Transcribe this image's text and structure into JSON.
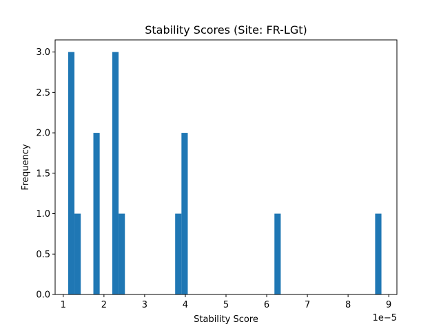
{
  "chart_data": {
    "type": "bar",
    "title": "Stability Scores (Site: FR-LGt)",
    "xlabel": "Stability Score",
    "ylabel": "Frequency",
    "x_offset_label": "1e−5",
    "x_scale_exponent": -5,
    "xlim": [
      0.8,
      9.2
    ],
    "ylim": [
      0,
      3.15
    ],
    "bin_width": 0.155,
    "x_ticks": [
      1,
      2,
      3,
      4,
      5,
      6,
      7,
      8,
      9
    ],
    "y_ticks": [
      0.0,
      0.5,
      1.0,
      1.5,
      2.0,
      2.5,
      3.0
    ],
    "y_tick_labels": [
      "0.0",
      "0.5",
      "1.0",
      "1.5",
      "2.0",
      "2.5",
      "3.0"
    ],
    "bars": [
      {
        "x_start": 1.12,
        "count": 3
      },
      {
        "x_start": 1.275,
        "count": 1
      },
      {
        "x_start": 1.74,
        "count": 2
      },
      {
        "x_start": 2.205,
        "count": 3
      },
      {
        "x_start": 2.36,
        "count": 1
      },
      {
        "x_start": 3.75,
        "count": 1
      },
      {
        "x_start": 3.905,
        "count": 2
      },
      {
        "x_start": 6.19,
        "count": 1
      },
      {
        "x_start": 8.665,
        "count": 1
      }
    ],
    "grid": false,
    "bar_color": "#1f77b4"
  }
}
